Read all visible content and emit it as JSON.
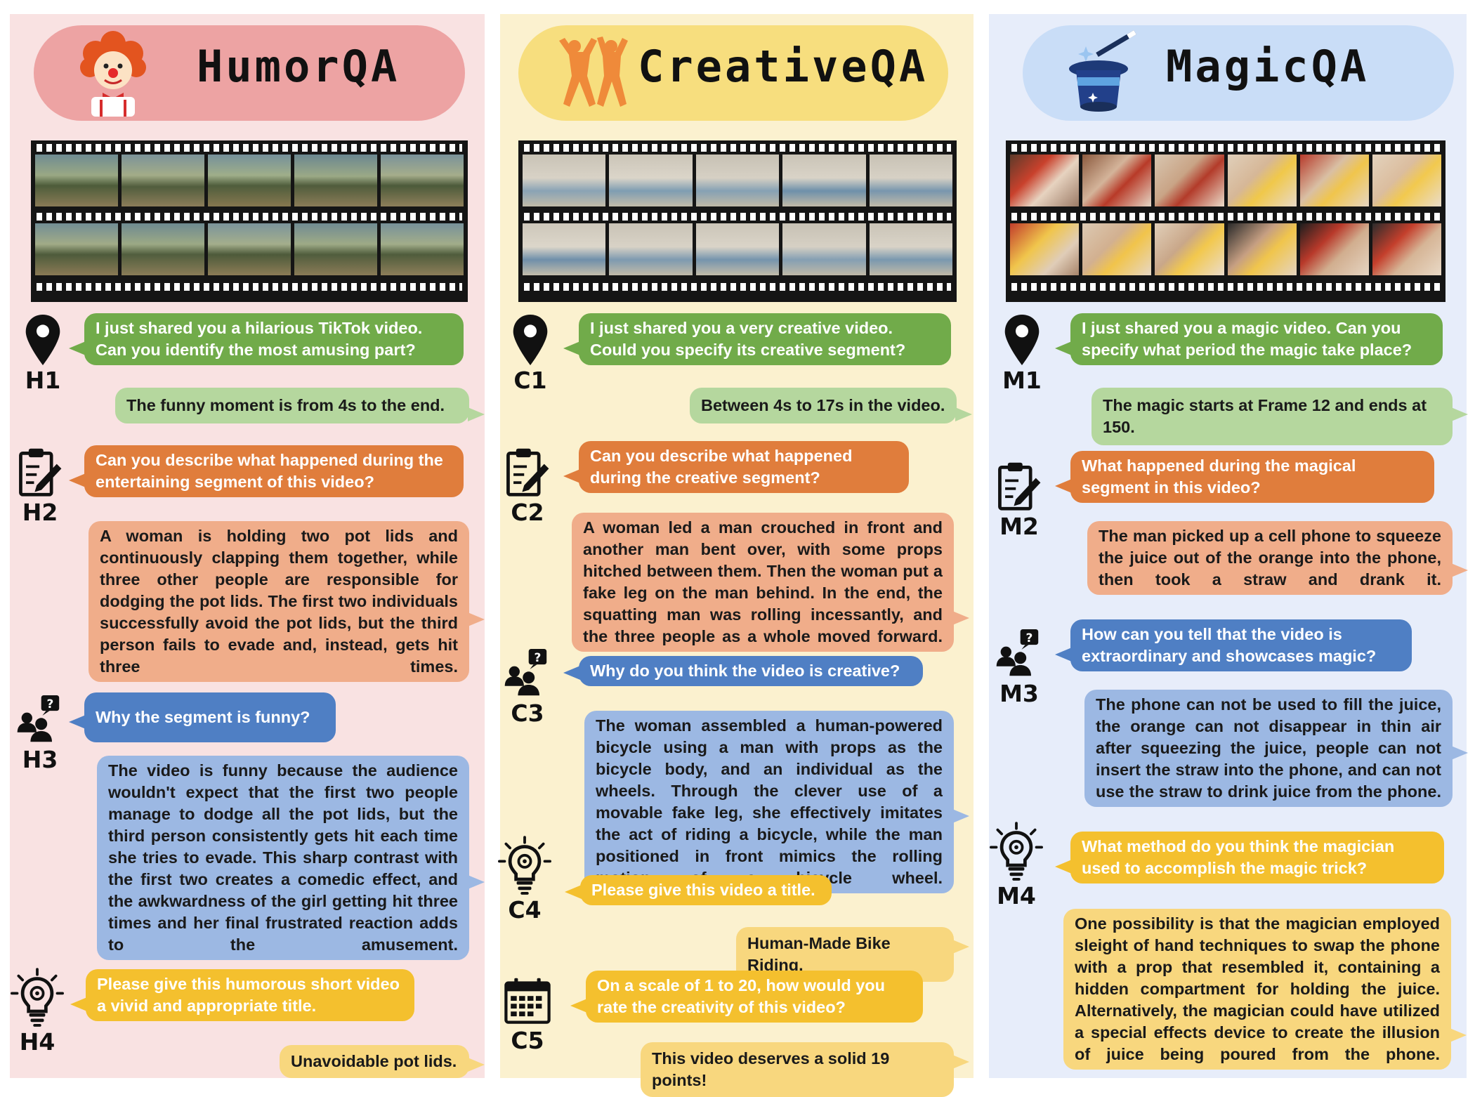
{
  "colors": {
    "humor_bg": "#f9e2e2",
    "humor_header": "#eda3a3",
    "creative_bg": "#fbf1cf",
    "creative_header": "#f7de7e",
    "magic_bg": "#e7edfa",
    "magic_header": "#c9ddf7",
    "green_q": "#71ab4a",
    "green_a": "#b5d79e",
    "orange_q": "#e07d3c",
    "orange_a": "#f0ad8a",
    "blue_q": "#4f7fc4",
    "blue_a": "#9cb8e3",
    "yellow_q": "#f4c02e",
    "yellow_a": "#f8d77e"
  },
  "humor": {
    "title": "HumorQA",
    "logo_icon": "clown-icon",
    "steps": [
      {
        "label": "H1",
        "icon": "location-pin-icon",
        "question": "I just shared you a hilarious TikTok video. Can you identify the most amusing part?",
        "answer": "The funny moment is from 4s to the end."
      },
      {
        "label": "H2",
        "icon": "clipboard-edit-icon",
        "question": "Can you describe what happened during the entertaining segment of this video?",
        "answer": "A woman is holding two pot lids and continuously clapping them together, while three other people are responsible for dodging the pot lids. The first two individuals successfully avoid the pot lids, but the third person fails to evade and, instead, gets hit three times."
      },
      {
        "label": "H3",
        "icon": "people-question-icon",
        "question": "Why the segment is funny?",
        "answer": "The video is funny because the audience wouldn't expect that the first two people manage to dodge all the pot lids, but the third person consistently gets hit each time she tries to evade. This sharp contrast with the first two creates a comedic effect, and the awkwardness of the girl getting hit three times and her final frustrated reaction adds to the amusement."
      },
      {
        "label": "H4",
        "icon": "lightbulb-gear-icon",
        "question": "Please give this humorous short video a vivid and appropriate title.",
        "answer": "Unavoidable pot lids."
      }
    ]
  },
  "creative": {
    "title": "CreativeQA",
    "logo_icon": "dancers-icon",
    "steps": [
      {
        "label": "C1",
        "icon": "location-pin-icon",
        "question": "I just shared you a very creative video. Could you specify its creative segment?",
        "answer": "Between 4s to 17s in the video."
      },
      {
        "label": "C2",
        "icon": "clipboard-edit-icon",
        "question": "Can you describe what happened during the creative segment?",
        "answer": "A woman led a man crouched in front and another man bent over, with some props hitched between them. Then the woman put a fake leg on the man behind. In the end, the squatting man was rolling incessantly, and the three people as a whole moved forward."
      },
      {
        "label": "C3",
        "icon": "people-question-icon",
        "question": "Why do you think the video is creative?",
        "answer": "The woman assembled a human-powered bicycle using a man with props as the bicycle body, and an individual as the wheels. Through the clever use of a movable fake leg, she effectively imitates the act of riding a bicycle, while the man positioned in front mimics the rolling motion of a bicycle wheel."
      },
      {
        "label": "C4",
        "icon": "lightbulb-gear-icon",
        "question": "Please give this video a title.",
        "answer": "Human-Made Bike Riding."
      },
      {
        "label": "C5",
        "icon": "calendar-icon",
        "question": "On a scale of 1 to 20, how would you rate the creativity of this video?",
        "answer": "This video deserves a solid 19 points!"
      }
    ]
  },
  "magic": {
    "title": "MagicQA",
    "logo_icon": "magic-hat-icon",
    "steps": [
      {
        "label": "M1",
        "icon": "location-pin-icon",
        "question": "I just shared you a magic video. Can you specify what period the magic take place?",
        "answer": "The magic starts at Frame 12 and ends at 150."
      },
      {
        "label": "M2",
        "icon": "clipboard-edit-icon",
        "question": "What happened during the magical segment in this video?",
        "answer": "The man picked up a cell phone to squeeze the juice out of the orange into the phone, then took a straw and drank it."
      },
      {
        "label": "M3",
        "icon": "people-question-icon",
        "question": "How can you tell that the video is extraordinary and showcases magic?",
        "answer": "The phone can not be used to fill the juice, the orange can not disappear in thin air after squeezing the juice, people can not insert the straw into the phone, and can not use the straw to drink juice from the phone."
      },
      {
        "label": "M4",
        "icon": "lightbulb-gear-icon",
        "question": "What method do you think the magician used to accomplish the magic trick?",
        "answer": "One possibility is that the magician employed sleight of hand techniques to swap the phone with a prop that resembled it, containing a hidden compartment for holding the juice. Alternatively, the magician could have utilized a special effects device to create the illusion of juice being poured from the phone."
      }
    ]
  }
}
